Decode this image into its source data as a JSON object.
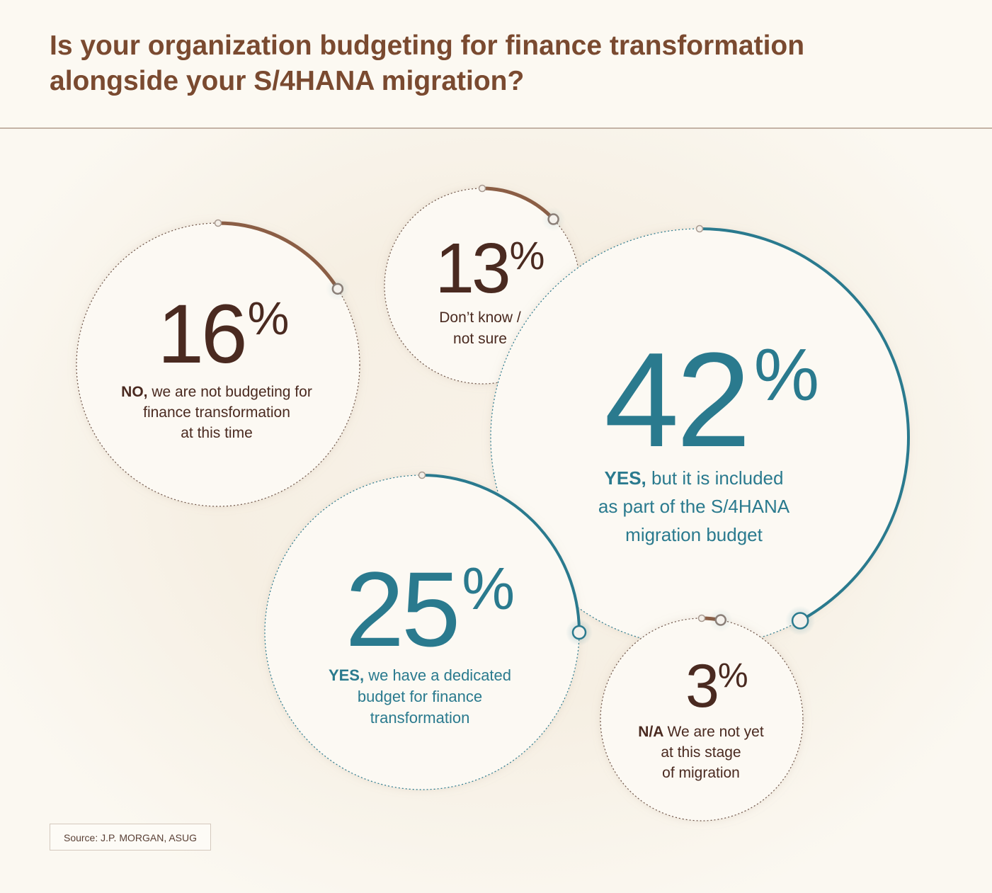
{
  "title_lines": [
    "Is your organization budgeting for finance transformation",
    "alongside your S/4HANA migration?"
  ],
  "source": "Source: J.P. MORGAN, ASUG",
  "colors": {
    "brown": "#8b5e45",
    "brown_dark": "#4a2a20",
    "teal": "#2a7a8e",
    "title": "#7a4a30"
  },
  "chart_data": {
    "type": "bubble-arc",
    "unit": "%",
    "items": [
      {
        "value": 42,
        "bold": "YES,",
        "label_lines": [
          "but it is included",
          "as part of the S/4HANA",
          "migration budget"
        ],
        "color": "teal"
      },
      {
        "value": 25,
        "bold": "YES,",
        "label_lines": [
          "we have a dedicated",
          "budget for finance",
          "transformation"
        ],
        "color": "teal"
      },
      {
        "value": 16,
        "bold": "NO,",
        "label_lines": [
          "we are not budgeting for",
          "finance transformation",
          "at this time"
        ],
        "color": "brown"
      },
      {
        "value": 13,
        "bold": "",
        "label_lines": [
          "Don’t know /",
          "not sure"
        ],
        "color": "brown"
      },
      {
        "value": 3,
        "bold": "N/A",
        "label_lines": [
          "We are not yet",
          "at this stage",
          "of migration"
        ],
        "color": "brown"
      }
    ]
  }
}
